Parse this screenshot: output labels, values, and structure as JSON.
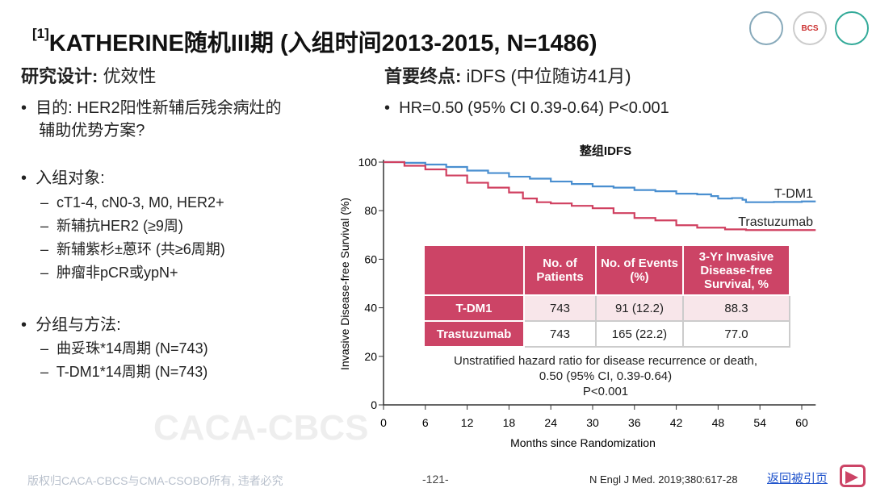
{
  "title": {
    "ref": "[1]",
    "text": "KATHERINE随机III期 (入组时间2013-2015, N=1486)"
  },
  "logos": [
    "logo-1",
    "BCS",
    "logo-3"
  ],
  "left": {
    "heading_bold": "研究设计:",
    "heading_rest": " 优效性",
    "purpose": "目的: HER2阳性新辅后残余病灶的",
    "purpose2": "辅助优势方案?",
    "enroll": "入组对象:",
    "enroll_items": [
      "cT1-4, cN0-3, M0, HER2+",
      "新辅抗HER2 (≥9周)",
      "新辅紫杉±蒽环 (共≥6周期)",
      "肿瘤非pCR或ypN+"
    ],
    "groups": "分组与方法:",
    "group_items": [
      "曲妥珠*14周期 (N=743)",
      "T-DM1*14周期 (N=743)"
    ]
  },
  "right": {
    "heading_bold": "首要终点:",
    "heading_rest": " iDFS (中位随访41月)",
    "hr": "HR=0.50 (95% CI 0.39-0.64) P<0.001"
  },
  "chart_data": {
    "type": "line",
    "title": "整组IDFS",
    "xlabel": "Months since Randomization",
    "ylabel": "Invasive Disease-free Survival (%)",
    "xlim": [
      0,
      62
    ],
    "ylim": [
      0,
      100
    ],
    "xticks": [
      0,
      6,
      12,
      18,
      24,
      30,
      36,
      42,
      48,
      54,
      60
    ],
    "yticks": [
      0,
      20,
      40,
      60,
      80,
      100
    ],
    "series": [
      {
        "name": "T-DM1",
        "color": "#4a8fd0",
        "x": [
          0,
          3,
          6,
          9,
          12,
          15,
          18,
          21,
          24,
          27,
          30,
          33,
          36,
          39,
          42,
          45,
          47,
          48,
          50,
          51.5,
          52,
          56,
          60,
          62
        ],
        "y": [
          100,
          99.7,
          99,
          98,
          96.5,
          95.5,
          94,
          93.2,
          92,
          91,
          90,
          89.5,
          88.5,
          88,
          87,
          86.7,
          86,
          85,
          85.2,
          84.5,
          83.5,
          83.6,
          83.8,
          83.8
        ]
      },
      {
        "name": "Trastuzumab",
        "color": "#d04060",
        "x": [
          0,
          1,
          3,
          6,
          9,
          12,
          15,
          18,
          20,
          22,
          24,
          27,
          30,
          33,
          36,
          39,
          42,
          45,
          48,
          49,
          52,
          62
        ],
        "y": [
          100,
          100,
          98.5,
          97,
          94.5,
          91.5,
          89.5,
          87.5,
          85,
          83.5,
          83,
          82,
          81,
          79,
          77,
          76,
          74,
          73,
          73,
          72.3,
          72,
          72
        ]
      }
    ],
    "table": {
      "headers": [
        "",
        "No. of Patients",
        "No. of Events (%)",
        "3-Yr Invasive Disease-free Survival, %"
      ],
      "rows": [
        [
          "T-DM1",
          "743",
          "91 (12.2)",
          "88.3"
        ],
        [
          "Trastuzumab",
          "743",
          "165 (22.2)",
          "77.0"
        ]
      ]
    },
    "note": [
      "Unstratified hazard ratio for disease recurrence or death,",
      "0.50 (95% CI, 0.39-0.64)",
      "P<0.001"
    ],
    "watermark": "CACA-CBCS"
  },
  "footer": {
    "copyright": "版权归CACA-CBCS与CMA-CSOBO所有, 违者必究",
    "page": "-121-",
    "citation": "N Engl J Med. 2019;380:617-28",
    "back_link": "返回被引页"
  }
}
